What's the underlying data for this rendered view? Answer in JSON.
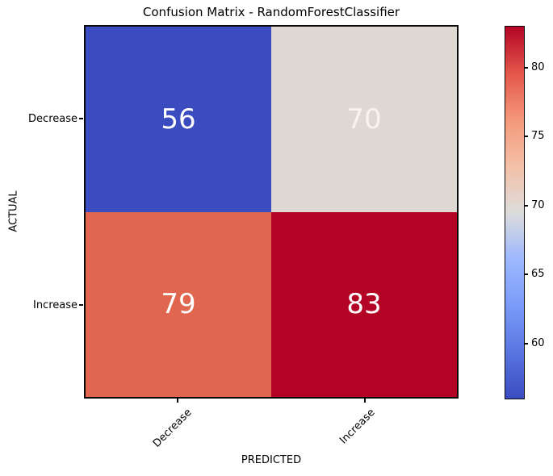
{
  "chart_data": {
    "type": "heatmap",
    "title": "Confusion Matrix - RandomForestClassifier",
    "xlabel": "PREDICTED",
    "ylabel": "ACTUAL",
    "x_categories": [
      "Decrease",
      "Increase"
    ],
    "y_categories": [
      "Decrease",
      "Increase"
    ],
    "values": [
      [
        56,
        70
      ],
      [
        79,
        83
      ]
    ],
    "cell_colors": [
      [
        "#3B4CC0",
        "#DFD9D4"
      ],
      [
        "#E0664F",
        "#B40426"
      ]
    ],
    "cell_text_colors": [
      [
        "#FFFFFF",
        "#F8F3EF"
      ],
      [
        "#FFFFFF",
        "#FFFFFF"
      ]
    ],
    "colormap": "coolwarm",
    "grid": false,
    "legend_position": "colorbar-right",
    "colorbar": {
      "vmin": 56,
      "vmax": 83,
      "tick_values": [
        80,
        75,
        70,
        65,
        60
      ],
      "tick_labels": [
        "80",
        "75",
        "70",
        "65",
        "60"
      ],
      "gradient": [
        {
          "pos": 0,
          "color": "#B40426"
        },
        {
          "pos": 12.5,
          "color": "#E3564A"
        },
        {
          "pos": 25,
          "color": "#F4987A"
        },
        {
          "pos": 37.5,
          "color": "#F4C0A6"
        },
        {
          "pos": 50,
          "color": "#DDDCDC"
        },
        {
          "pos": 62.5,
          "color": "#9DB8FE"
        },
        {
          "pos": 75,
          "color": "#7A9BF9"
        },
        {
          "pos": 87.5,
          "color": "#5975E0"
        },
        {
          "pos": 100,
          "color": "#3B4CC0"
        }
      ]
    }
  }
}
